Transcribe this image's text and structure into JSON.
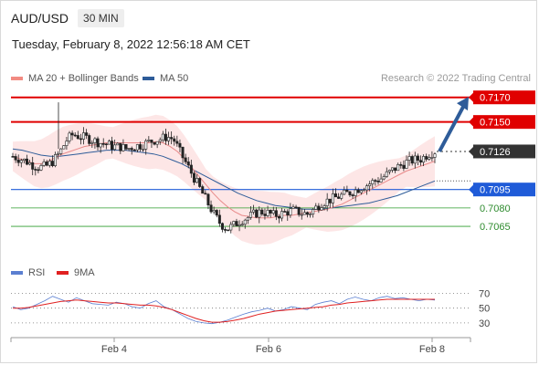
{
  "header": {
    "symbol": "AUD/USD",
    "timeframe": "30 MIN",
    "datetime": "Tuesday, February 8, 2022 12:56:18 AM CET",
    "credit": "Research © 2022 Trading Central"
  },
  "legend": {
    "ma20": {
      "label": "MA 20 + Bollinger Bands",
      "color": "#f28b82"
    },
    "ma50": {
      "label": "MA 50",
      "color": "#2e5c99"
    }
  },
  "rsi_legend": {
    "rsi": {
      "label": "RSI",
      "color": "#5b7fd1"
    },
    "ma9": {
      "label": "9MA",
      "color": "#e02020"
    }
  },
  "chart_data": {
    "type": "line",
    "subtype": "candlestick",
    "x_ticks": [
      "Feb 4",
      "Feb 6",
      "Feb 8"
    ],
    "ylim": [
      0.7045,
      0.7175
    ],
    "levels": [
      {
        "value": 0.717,
        "label": "0.7170",
        "kind": "resistance",
        "color": "#e00000"
      },
      {
        "value": 0.715,
        "label": "0.7150",
        "kind": "resistance",
        "color": "#e00000"
      },
      {
        "value": 0.7126,
        "label": "0.7126",
        "kind": "current",
        "color": "#333333"
      },
      {
        "value": 0.7095,
        "label": "0.7095",
        "kind": "support",
        "color": "#1f5bd8"
      },
      {
        "value": 0.708,
        "label": "0.7080",
        "kind": "target",
        "color": "#2e9e2e"
      },
      {
        "value": 0.7065,
        "label": "0.7065",
        "kind": "target",
        "color": "#2e9e2e"
      }
    ],
    "price_path": [
      0.7122,
      0.712,
      0.7118,
      0.7115,
      0.7113,
      0.7114,
      0.7118,
      0.7125,
      0.7135,
      0.714,
      0.7138,
      0.7137,
      0.7135,
      0.7133,
      0.7132,
      0.713,
      0.713,
      0.7128,
      0.713,
      0.7131,
      0.7133,
      0.7135,
      0.7136,
      0.7138,
      0.7136,
      0.7125,
      0.7115,
      0.7105,
      0.7095,
      0.7085,
      0.7075,
      0.7067,
      0.7063,
      0.7066,
      0.707,
      0.7072,
      0.7075,
      0.7077,
      0.7076,
      0.7074,
      0.7075,
      0.7077,
      0.7078,
      0.7076,
      0.7075,
      0.7079,
      0.7084,
      0.7086,
      0.7088,
      0.709,
      0.7092,
      0.7094,
      0.7097,
      0.7099,
      0.7102,
      0.7104,
      0.7108,
      0.7112,
      0.7115,
      0.7118,
      0.7119,
      0.712,
      0.7124,
      0.7126
    ],
    "ma20": [
      0.7122,
      0.712,
      0.7118,
      0.7116,
      0.7116,
      0.7118,
      0.7121,
      0.7124,
      0.7126,
      0.7128,
      0.713,
      0.7131,
      0.7132,
      0.7133,
      0.7133,
      0.7133,
      0.7133,
      0.7133,
      0.7133,
      0.7133,
      0.7134,
      0.7133,
      0.713,
      0.7126,
      0.712,
      0.7113,
      0.7106,
      0.7099,
      0.7092,
      0.7086,
      0.7081,
      0.7077,
      0.7074,
      0.7073,
      0.7072,
      0.7072,
      0.7072,
      0.7073,
      0.7074,
      0.7074,
      0.7075,
      0.7076,
      0.7077,
      0.7078,
      0.7079,
      0.7081,
      0.7083,
      0.7086,
      0.7089,
      0.7092,
      0.7095,
      0.7098,
      0.7101,
      0.7104,
      0.7107,
      0.711,
      0.7112,
      0.7114,
      0.7116,
      0.7118
    ],
    "ma50": [
      0.7128,
      0.7127,
      0.7125,
      0.7123,
      0.7122,
      0.7122,
      0.7123,
      0.7124,
      0.7125,
      0.7126,
      0.7127,
      0.7127,
      0.7127,
      0.7126,
      0.7125,
      0.7124,
      0.7122,
      0.7119,
      0.7116,
      0.7112,
      0.7108,
      0.7104,
      0.71,
      0.7096,
      0.7092,
      0.7089,
      0.7086,
      0.7084,
      0.7082,
      0.7081,
      0.708,
      0.7079,
      0.7079,
      0.7079,
      0.708,
      0.7081,
      0.7082,
      0.7083,
      0.7084,
      0.7086,
      0.7088,
      0.709,
      0.7093,
      0.7096,
      0.7099,
      0.7102
    ],
    "rsi": {
      "ticks": [
        70,
        50,
        30
      ],
      "ylim": [
        20,
        78
      ],
      "rsi_values": [
        52,
        48,
        50,
        55,
        60,
        66,
        62,
        58,
        64,
        60,
        56,
        55,
        54,
        58,
        56,
        52,
        50,
        56,
        60,
        52,
        48,
        42,
        36,
        32,
        30,
        29,
        31,
        34,
        38,
        42,
        45,
        47,
        50,
        46,
        48,
        52,
        50,
        48,
        55,
        58,
        60,
        56,
        62,
        65,
        62,
        60,
        64,
        66,
        63,
        64,
        62,
        60,
        62,
        61
      ],
      "ma9_values": [
        50,
        50,
        51,
        53,
        55,
        57,
        59,
        60,
        61,
        60,
        59,
        58,
        57,
        57,
        56,
        55,
        54,
        54,
        53,
        51,
        48,
        44,
        40,
        36,
        33,
        31,
        31,
        32,
        34,
        36,
        39,
        42,
        44,
        46,
        47,
        48,
        49,
        50,
        51,
        52,
        54,
        55,
        57,
        58,
        59,
        60,
        61,
        62,
        62,
        62,
        62,
        62,
        62,
        62
      ]
    }
  }
}
